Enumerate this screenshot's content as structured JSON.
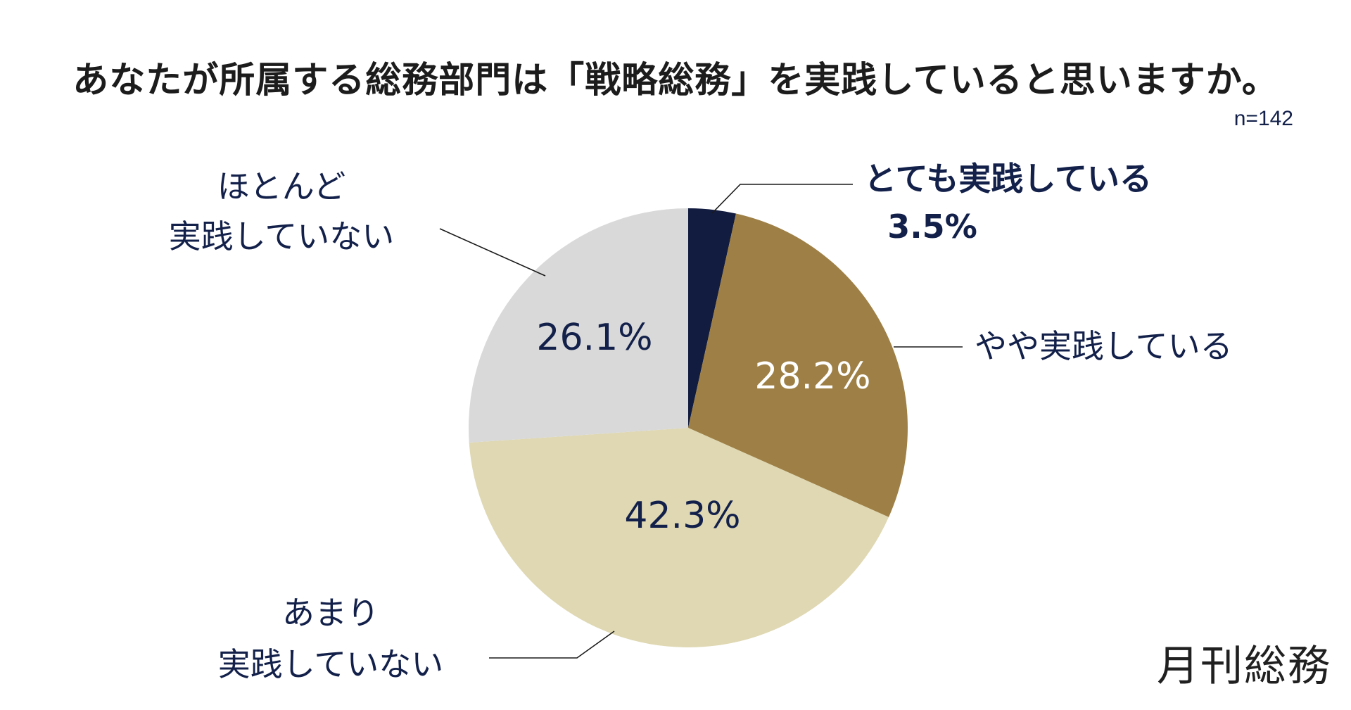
{
  "title": "あなたが所属する総務部門は「戦略総務」を実践していると思いますか。",
  "sample_size": "n=142",
  "brand": "月刊総務",
  "colors": {
    "very": "#111c40",
    "somewhat": "#9e8046",
    "not_much": "#dfd8b3",
    "hardly": "#d9d9d9",
    "text_dark": "#12204a",
    "text_light": "#ffffff",
    "leader": "#1a1a1a"
  },
  "chart_data": {
    "type": "pie",
    "title": "あなたが所属する総務部門は「戦略総務」を実践していると思いますか。",
    "slices": [
      {
        "key": "very",
        "label": [
          "とても実践している"
        ],
        "value": 3.5,
        "value_label": "3.5%",
        "color": "#111c40",
        "label_inside": false
      },
      {
        "key": "somewhat",
        "label": [
          "やや実践している"
        ],
        "value": 28.2,
        "value_label": "28.2%",
        "color": "#9e8046",
        "label_inside": true
      },
      {
        "key": "not_much",
        "label": [
          "あまり",
          "実践していない"
        ],
        "value": 42.3,
        "value_label": "42.3%",
        "color": "#dfd8b3",
        "label_inside": true
      },
      {
        "key": "hardly",
        "label": [
          "ほとんど",
          "実践していない"
        ],
        "value": 26.1,
        "value_label": "26.1%",
        "color": "#d9d9d9",
        "label_inside": true
      }
    ],
    "start_angle_deg": 0,
    "direction": "clockwise"
  }
}
